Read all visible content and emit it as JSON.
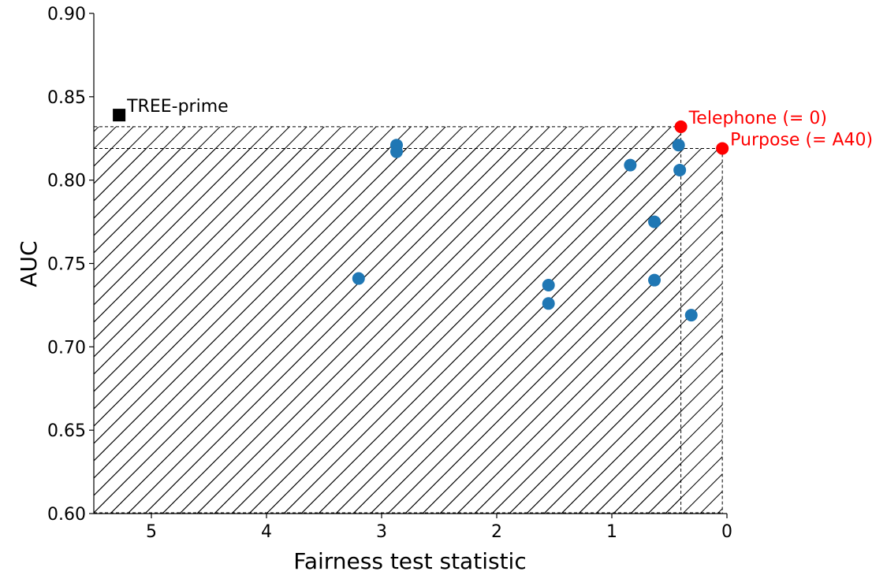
{
  "chart_data": {
    "type": "scatter",
    "title": "",
    "xlabel": "Fairness test statistic",
    "ylabel": "AUC",
    "xlim": [
      5.5,
      0
    ],
    "ylim": [
      0.6,
      0.9
    ],
    "x_reversed": true,
    "xticks": [
      {
        "value": 5,
        "label": "5"
      },
      {
        "value": 4,
        "label": "4"
      },
      {
        "value": 3,
        "label": "3"
      },
      {
        "value": 2,
        "label": "2"
      },
      {
        "value": 1,
        "label": "1"
      },
      {
        "value": 0,
        "label": "0"
      }
    ],
    "yticks": [
      {
        "value": 0.6,
        "label": "0.60"
      },
      {
        "value": 0.65,
        "label": "0.65"
      },
      {
        "value": 0.7,
        "label": "0.70"
      },
      {
        "value": 0.75,
        "label": "0.75"
      },
      {
        "value": 0.8,
        "label": "0.80"
      },
      {
        "value": 0.85,
        "label": "0.85"
      },
      {
        "value": 0.9,
        "label": "0.90"
      }
    ],
    "grid": false,
    "series": [
      {
        "color": "#1f77b4",
        "marker": "circle",
        "points": [
          {
            "x": 3.2,
            "y": 0.741
          },
          {
            "x": 2.87,
            "y": 0.821
          },
          {
            "x": 2.87,
            "y": 0.817
          },
          {
            "x": 1.55,
            "y": 0.737
          },
          {
            "x": 1.55,
            "y": 0.726
          },
          {
            "x": 0.84,
            "y": 0.809
          },
          {
            "x": 0.63,
            "y": 0.775
          },
          {
            "x": 0.63,
            "y": 0.74
          },
          {
            "x": 0.42,
            "y": 0.821
          },
          {
            "x": 0.41,
            "y": 0.806
          },
          {
            "x": 0.31,
            "y": 0.719
          }
        ]
      },
      {
        "color": "#ff0000",
        "marker": "circle",
        "points": [
          {
            "x": 0.4,
            "y": 0.832,
            "label": "Telephone (= 0)"
          },
          {
            "x": 0.04,
            "y": 0.819,
            "label": "Purpose (= A40)"
          }
        ]
      }
    ],
    "reference": {
      "color": "#000000",
      "marker": "square",
      "x": 5.28,
      "y": 0.839,
      "label": "TREE-prime"
    },
    "hatched_regions": [
      {
        "x_from": 5.5,
        "x_to": 0.4,
        "y_from": 0.6,
        "y_to": 0.832
      },
      {
        "x_from": 5.5,
        "x_to": 0.04,
        "y_from": 0.6,
        "y_to": 0.819
      }
    ]
  }
}
